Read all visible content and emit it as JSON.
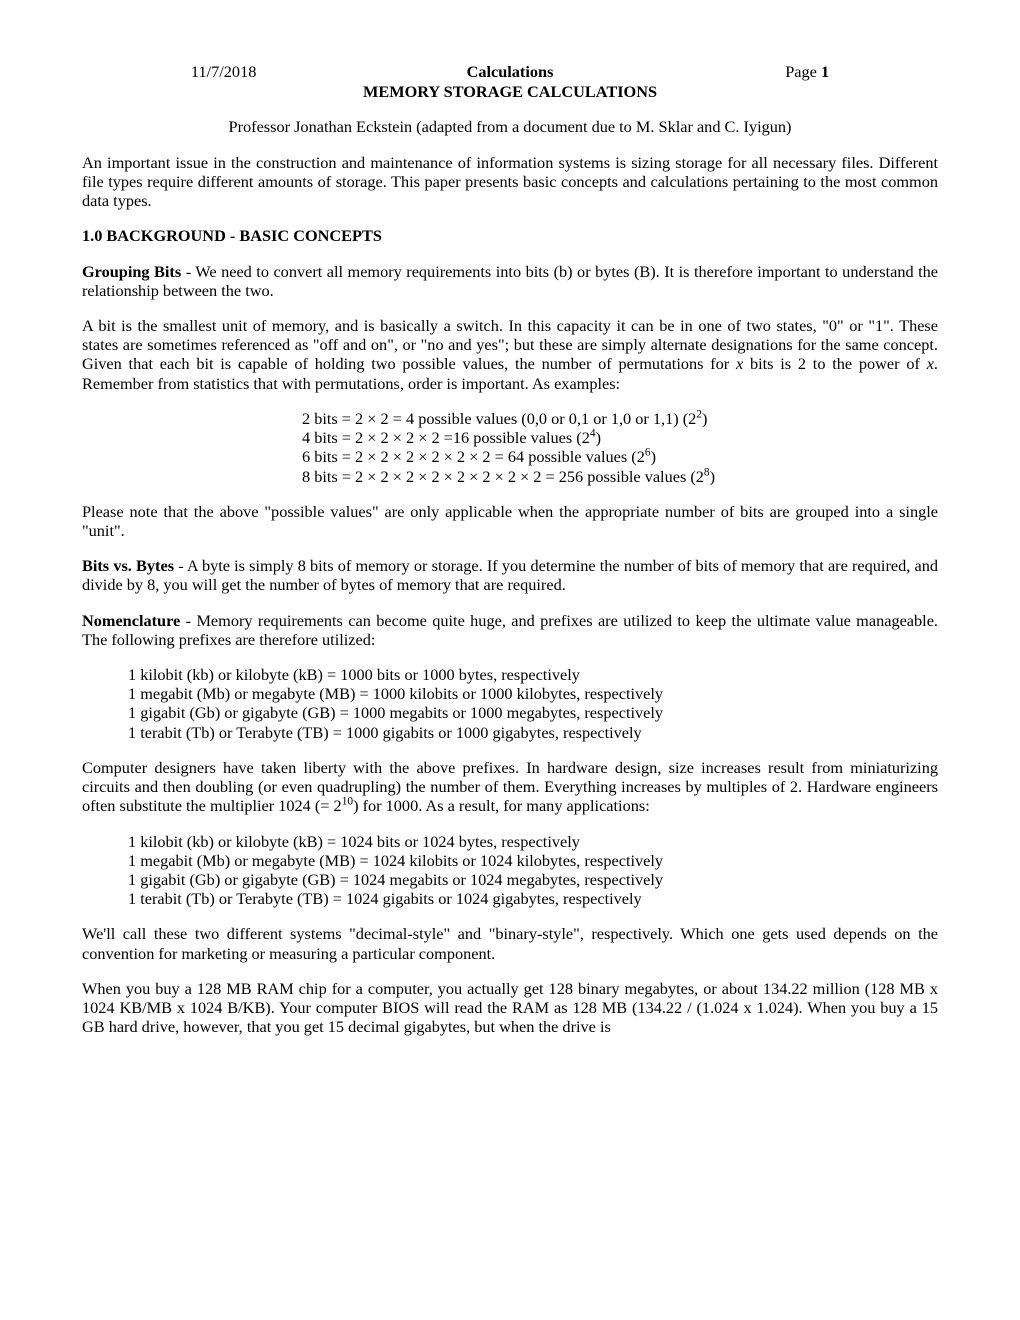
{
  "header": {
    "date": "11/7/2018",
    "title_center": "Calculations",
    "page_label": "Page ",
    "page_num": "1",
    "title2": "MEMORY STORAGE CALCULATIONS"
  },
  "author": "Professor Jonathan Eckstein (adapted from a document due to M. Sklar and C. Iyigun)",
  "intro": "An important issue in the construction and maintenance of information systems is sizing storage for all necessary files. Different file types require different amounts of storage. This paper presents basic concepts and calculations pertaining to the most common data types.",
  "section1_heading": "1.0  BACKGROUND - BASIC CONCEPTS",
  "grouping_bits_label": "Grouping Bits",
  "grouping_bits_text": " - We need to convert all memory requirements into bits (b) or bytes (B).  It is therefore important to understand the relationship between the two.",
  "bit_text_a": "A bit is the smallest unit of memory, and is basically a switch.  In this capacity it can be in one of two states, \"0\" or \"1\".  These states are sometimes referenced as \"off and on\", or \"no and yes\"; but these are simply alternate designations for the same concept.  Given that each bit is capable of holding two possible values, the number of permutations for ",
  "bit_text_x1": "x",
  "bit_text_b": " bits is 2 to the power of ",
  "bit_text_x2": "x",
  "bit_text_c": ". Remember from statistics that with permutations, order is important. As examples:",
  "bits_ex": {
    "l1a": "2 bits = 2 × 2 = 4 possible values (0,0 or 0,1 or 1,0 or 1,1) (2",
    "l1b": "2",
    "l1c": ")",
    "l2a": "4 bits = 2 × 2 × 2 × 2 =16 possible values (2",
    "l2b": "4",
    "l2c": ")",
    "l3a": "6 bits = 2 × 2 × 2 × 2 × 2 × 2 = 64 possible values (2",
    "l3b": "6",
    "l3c": ")",
    "l4a": "8 bits = 2 × 2 × 2 × 2 × 2 × 2 × 2 × 2 = 256 possible values (2",
    "l4b": "8",
    "l4c": ")"
  },
  "note_para": "Please note that the above \"possible values\" are only applicable when the appropriate number of bits are grouped into a single \"unit\".",
  "bvb_label": "Bits vs. Bytes",
  "bvb_text": " - A byte is simply 8 bits of memory or storage.  If you determine the number of bits of memory that are required, and divide by 8, you will get the number of bytes of memory that are required.",
  "nom_label": "Nomenclature",
  "nom_text": " - Memory requirements can become quite huge, and prefixes are utilized to keep the ultimate value manageable.  The following prefixes are therefore utilized:",
  "prefixes1": {
    "l1": "1 kilobit (kb) or kilobyte (kB) = 1000 bits or 1000 bytes, respectively",
    "l2": "1 megabit (Mb) or megabyte (MB) = 1000 kilobits or 1000 kilobytes, respectively",
    "l3": "1 gigabit (Gb) or gigabyte (GB) = 1000 megabits or 1000 megabytes, respectively",
    "l4": "1 terabit (Tb) or Terabyte (TB) = 1000 gigabits or 1000 gigabytes, respectively"
  },
  "designers_a": "Computer designers have taken liberty with the above prefixes.  In hardware design, size increases result from miniaturizing circuits and then doubling (or even quadrupling) the number of them.  Everything increases by multiples of 2.  Hardware engineers often substitute the multiplier 1024 (= 2",
  "designers_sup": "10",
  "designers_b": ") for 1000.  As a result, for many applications:",
  "prefixes2": {
    "l1": "1 kilobit (kb) or kilobyte (kB) = 1024 bits or 1024 bytes, respectively",
    "l2": "1 megabit (Mb) or megabyte (MB) = 1024 kilobits or 1024 kilobytes, respectively",
    "l3": "1 gigabit (Gb) or gigabyte (GB) = 1024 megabits or 1024 megabytes, respectively",
    "l4": "1 terabit (Tb) or Terabyte (TB) = 1024 gigabits or 1024 gigabytes, respectively"
  },
  "systems_para": "We'll call these two different systems \"decimal-style\" and \"binary-style\", respectively.  Which one gets used depends on the convention for marketing or measuring a particular component.",
  "ram_para": "When you buy a 128 MB RAM chip for a computer, you actually get 128 binary megabytes, or about 134.22 million (128 MB x 1024 KB/MB x 1024 B/KB).  Your computer BIOS will read the RAM as 128 MB (134.22 / (1.024 x 1.024).  When you buy a 15 GB hard drive, however, that you get 15 decimal gigabytes, but when the drive is"
}
